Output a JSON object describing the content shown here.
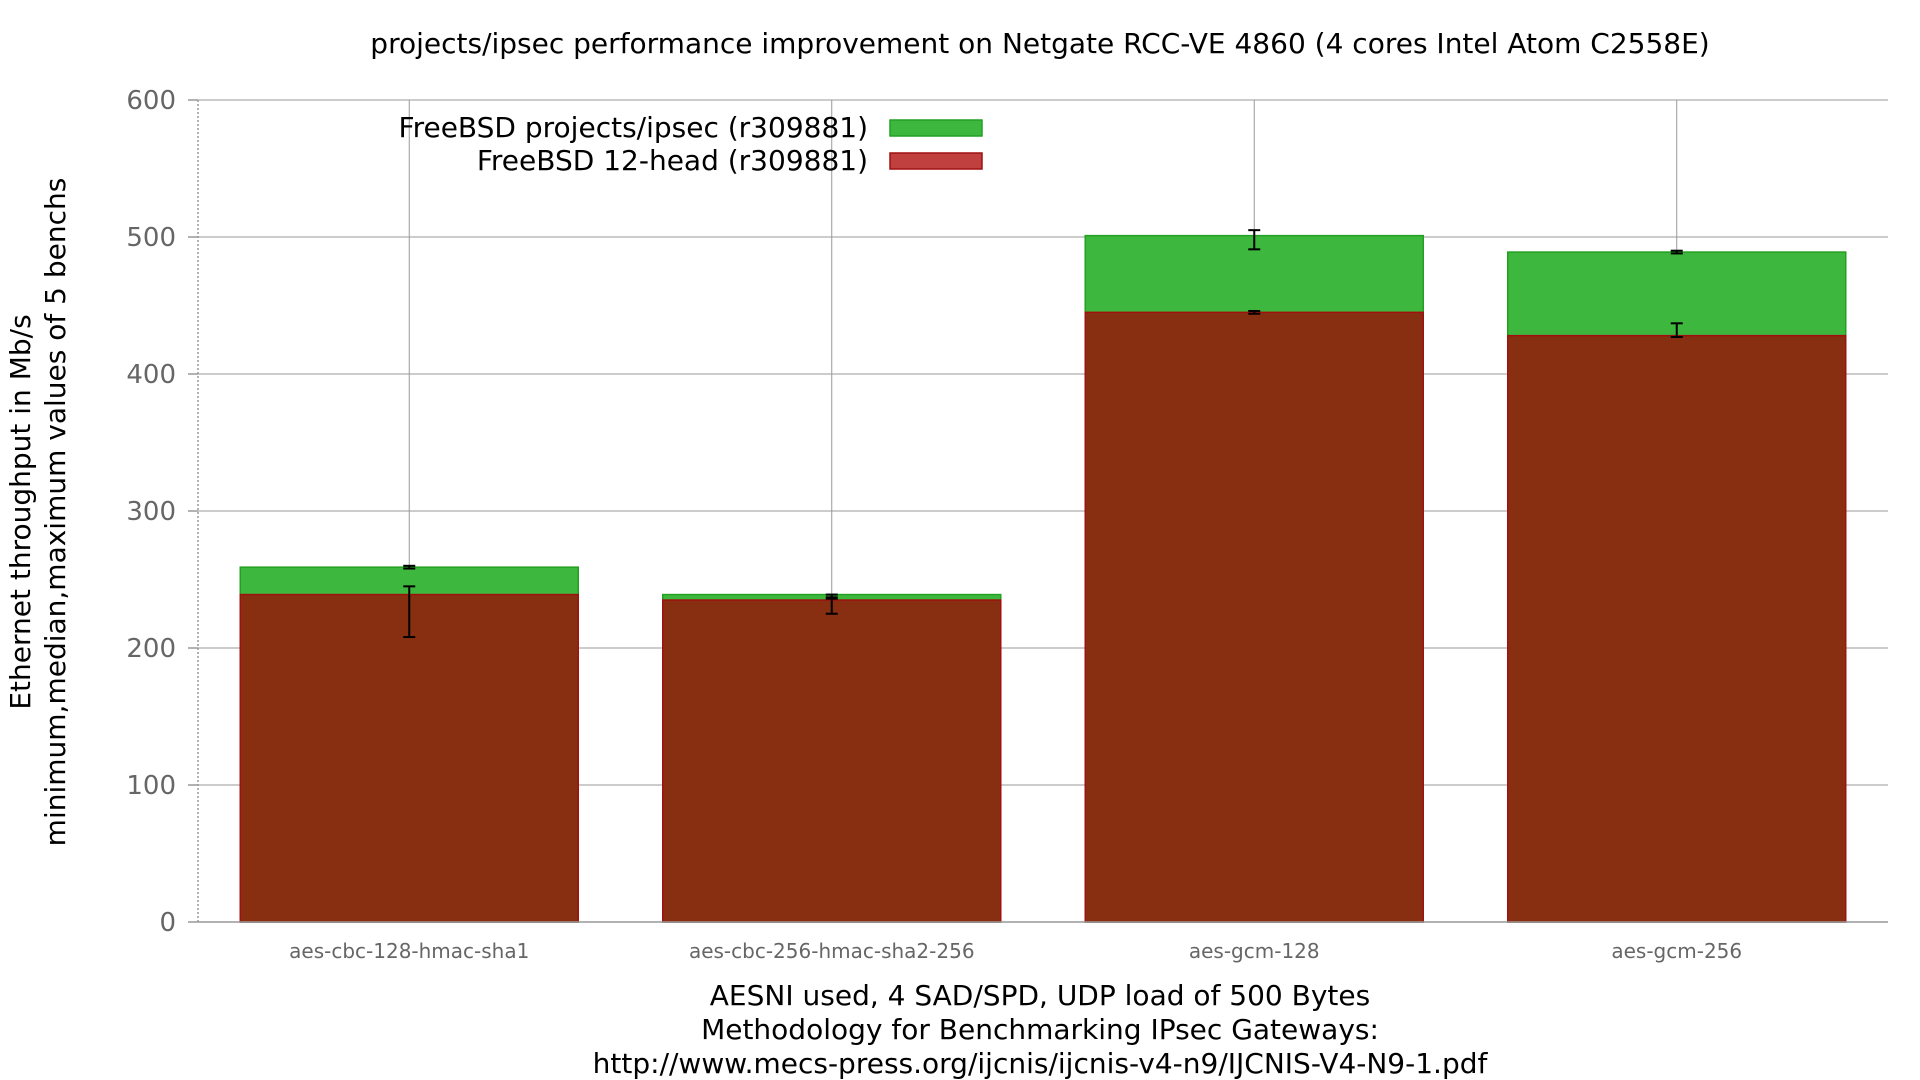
{
  "chart_data": {
    "type": "bar",
    "title": "projects/ipsec performance improvement on Netgate RCC-VE 4860 (4 cores Intel Atom C2558E)",
    "ylabel_lines": [
      "Ethernet throughput in Mb/s",
      "minimum,median,maximum values of 5 benchs"
    ],
    "xlabel_lines": [
      "AESNI used, 4 SAD/SPD, UDP load of 500 Bytes",
      "Methodology for Benchmarking IPsec Gateways:",
      "http://www.mecs-press.org/ijcnis/ijcnis-v4-n9/IJCNIS-V4-N9-1.pdf"
    ],
    "ylim": [
      0,
      600
    ],
    "yticks": [
      0,
      100,
      200,
      300,
      400,
      500,
      600
    ],
    "yticks_labels": [
      "0",
      "100",
      "200",
      "300",
      "400",
      "500",
      "600"
    ],
    "grid": true,
    "legend_position": "top-left",
    "categories": [
      "aes-cbc-128-hmac-sha1",
      "aes-cbc-256-hmac-sha2-256",
      "aes-gcm-128",
      "aes-gcm-256"
    ],
    "series": [
      {
        "name": "FreeBSD projects/ipsec (r309881)",
        "color": "#3db73d",
        "border": "#22a022",
        "values": [
          259,
          239,
          501,
          489
        ],
        "min": [
          258,
          236,
          491,
          488
        ],
        "max": [
          260,
          239,
          505,
          490
        ]
      },
      {
        "name": "FreeBSD 12-head (r309881)",
        "color": "#8a2a10",
        "legend_color": "#c04040",
        "border": "#a01010",
        "values": [
          239,
          235,
          445,
          428
        ],
        "min": [
          208,
          225,
          444,
          427
        ],
        "max": [
          245,
          237,
          446,
          437
        ]
      }
    ]
  }
}
